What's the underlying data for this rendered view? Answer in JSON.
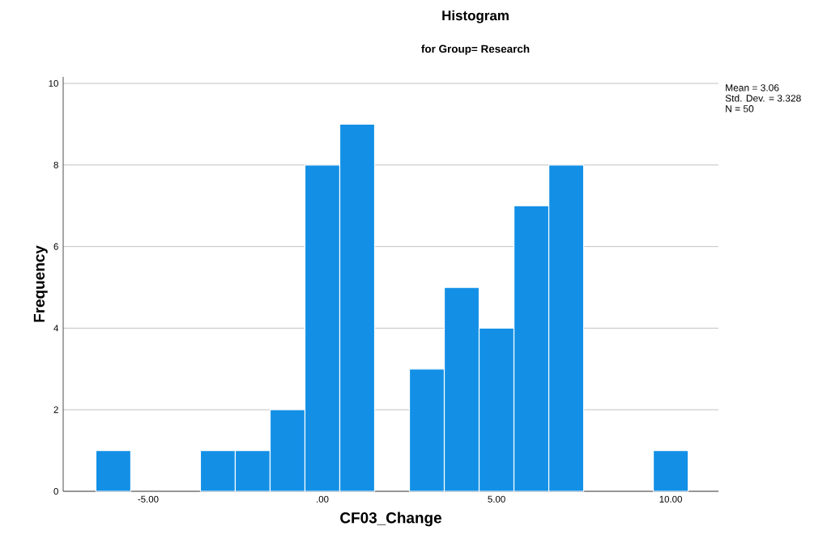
{
  "chart_data": {
    "type": "histogram",
    "title": "Histogram",
    "subtitle": "for Group= Research",
    "xlabel": "CF03_Change",
    "ylabel": "Frequency",
    "bins": [
      -6.5,
      -5.5,
      -4.5,
      -3.5,
      -2.5,
      -1.5,
      -0.5,
      0.5,
      1.5,
      2.5,
      3.5,
      4.5,
      5.5,
      6.5,
      7.5,
      8.5,
      9.5,
      10.5
    ],
    "values": [
      1,
      0,
      0,
      1,
      1,
      2,
      8,
      9,
      0,
      3,
      5,
      4,
      7,
      8,
      0,
      0,
      1
    ],
    "color": "#1390e6",
    "xlim": [
      -7.44,
      11.37
    ],
    "xticks": [
      {
        "value": -5,
        "label": "-5.00"
      },
      {
        "value": 0,
        "label": ".00"
      },
      {
        "value": 5,
        "label": "5.00"
      },
      {
        "value": 10,
        "label": "10.00"
      }
    ],
    "ylim": [
      0,
      10.16
    ],
    "yticks": [
      0,
      2,
      4,
      6,
      8,
      10
    ],
    "grid": "y",
    "annotations": [
      "Mean = 3.06",
      "Std. Dev. = 3.328",
      "N = 50"
    ]
  }
}
